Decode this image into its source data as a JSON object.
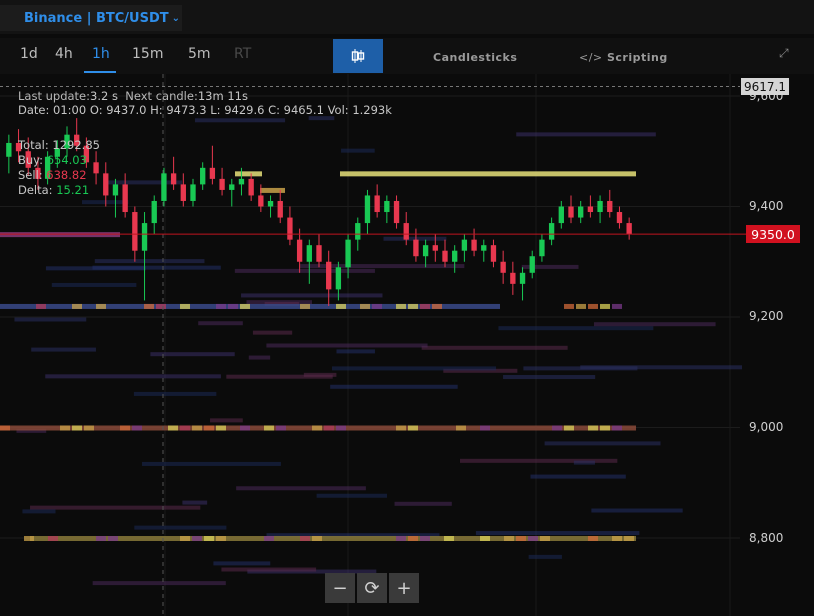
{
  "header": {
    "symbol": "Binance | BTC/USDT",
    "chevron_icon": "chevron-down-icon"
  },
  "timeframes": [
    {
      "label": "1d",
      "state": "normal"
    },
    {
      "label": "4h",
      "state": "normal"
    },
    {
      "label": "1h",
      "state": "active"
    },
    {
      "label": "15m",
      "state": "normal"
    },
    {
      "label": "5m",
      "state": "normal"
    },
    {
      "label": "RT",
      "state": "disabled"
    }
  ],
  "views": {
    "candlesticks_label": "Candlesticks",
    "scripting_label": "Scripting"
  },
  "info": {
    "last_update_label": "Last update:",
    "last_update": "3.2 s",
    "next_candle_label": "Next candle:",
    "next_candle": "13m 11s",
    "date_label": "Date:",
    "date": "01:00",
    "open_label": "O:",
    "open": "9437.0",
    "high_label": "H:",
    "high": "9473.3",
    "low_label": "L:",
    "low": "9429.6",
    "close_label": "C:",
    "close": "9465.1",
    "vol_label": "Vol:",
    "vol": "1.293k",
    "total_label": "Total:",
    "total": "1292.85",
    "buy_label": "Buy:",
    "buy": "654.03",
    "sell_label": "Sell:",
    "sell": "638.82",
    "delta_label": "Delta:",
    "delta": "15.21"
  },
  "price_axis": {
    "labels": [
      "9,600",
      "9,400",
      "9,200",
      "9,000",
      "8,800"
    ],
    "current_price": "9350.0",
    "top_price": "9617.1"
  },
  "zoom_controls": {
    "zoom_out": "−",
    "reset": "⟳",
    "zoom_in": "+"
  },
  "colors": {
    "accent": "#2f8ee9",
    "bull": "#19c954",
    "bear": "#e8384f",
    "current_price": "#d1111f"
  },
  "chart_data": {
    "type": "candlestick-heatmap",
    "symbol": "BTC/USDT",
    "timeframe": "1h",
    "ylim": [
      8680,
      9620
    ],
    "yticks": [
      9600,
      9400,
      9200,
      9000,
      8800
    ],
    "current_price": 9350.0,
    "top_price": 9617.1,
    "candles": [
      [
        9490,
        9530,
        9460,
        9515
      ],
      [
        9515,
        9540,
        9480,
        9500
      ],
      [
        9500,
        9525,
        9455,
        9470
      ],
      [
        9470,
        9490,
        9430,
        9450
      ],
      [
        9450,
        9500,
        9440,
        9490
      ],
      [
        9490,
        9520,
        9470,
        9505
      ],
      [
        9505,
        9545,
        9490,
        9530
      ],
      [
        9530,
        9560,
        9500,
        9510
      ],
      [
        9510,
        9525,
        9470,
        9480
      ],
      [
        9480,
        9500,
        9440,
        9460
      ],
      [
        9460,
        9480,
        9400,
        9420
      ],
      [
        9420,
        9450,
        9380,
        9440
      ],
      [
        9440,
        9460,
        9380,
        9390
      ],
      [
        9390,
        9400,
        9300,
        9320
      ],
      [
        9320,
        9390,
        9230,
        9370
      ],
      [
        9370,
        9420,
        9350,
        9410
      ],
      [
        9410,
        9470,
        9400,
        9460
      ],
      [
        9460,
        9490,
        9430,
        9440
      ],
      [
        9440,
        9460,
        9400,
        9410
      ],
      [
        9410,
        9450,
        9400,
        9440
      ],
      [
        9440,
        9480,
        9430,
        9470
      ],
      [
        9470,
        9510,
        9440,
        9450
      ],
      [
        9450,
        9470,
        9420,
        9430
      ],
      [
        9430,
        9450,
        9400,
        9440
      ],
      [
        9440,
        9470,
        9420,
        9450
      ],
      [
        9450,
        9460,
        9410,
        9420
      ],
      [
        9420,
        9440,
        9390,
        9400
      ],
      [
        9400,
        9420,
        9380,
        9410
      ],
      [
        9410,
        9430,
        9370,
        9380
      ],
      [
        9380,
        9400,
        9330,
        9340
      ],
      [
        9340,
        9360,
        9280,
        9300
      ],
      [
        9300,
        9340,
        9260,
        9330
      ],
      [
        9330,
        9350,
        9290,
        9300
      ],
      [
        9300,
        9320,
        9220,
        9250
      ],
      [
        9250,
        9300,
        9230,
        9290
      ],
      [
        9290,
        9350,
        9270,
        9340
      ],
      [
        9340,
        9380,
        9320,
        9370
      ],
      [
        9370,
        9430,
        9350,
        9420
      ],
      [
        9420,
        9440,
        9380,
        9390
      ],
      [
        9390,
        9420,
        9370,
        9410
      ],
      [
        9410,
        9420,
        9360,
        9370
      ],
      [
        9370,
        9390,
        9330,
        9340
      ],
      [
        9340,
        9360,
        9300,
        9310
      ],
      [
        9310,
        9340,
        9290,
        9330
      ],
      [
        9330,
        9350,
        9300,
        9320
      ],
      [
        9320,
        9340,
        9290,
        9300
      ],
      [
        9300,
        9330,
        9280,
        9320
      ],
      [
        9320,
        9350,
        9300,
        9340
      ],
      [
        9340,
        9360,
        9310,
        9320
      ],
      [
        9320,
        9340,
        9300,
        9330
      ],
      [
        9330,
        9340,
        9290,
        9300
      ],
      [
        9300,
        9320,
        9260,
        9280
      ],
      [
        9280,
        9300,
        9240,
        9260
      ],
      [
        9260,
        9290,
        9230,
        9280
      ],
      [
        9280,
        9320,
        9270,
        9310
      ],
      [
        9310,
        9350,
        9300,
        9340
      ],
      [
        9340,
        9380,
        9330,
        9370
      ],
      [
        9370,
        9410,
        9360,
        9400
      ],
      [
        9400,
        9420,
        9370,
        9380
      ],
      [
        9380,
        9410,
        9370,
        9400
      ],
      [
        9400,
        9420,
        9380,
        9390
      ],
      [
        9390,
        9420,
        9370,
        9410
      ],
      [
        9410,
        9430,
        9380,
        9390
      ],
      [
        9390,
        9400,
        9360,
        9370
      ],
      [
        9370,
        9380,
        9340,
        9350
      ]
    ],
    "heatmap_bands": [
      {
        "price": 9460,
        "x": [
          340,
          636
        ],
        "color": "#e8e27a"
      },
      {
        "price": 9460,
        "x": [
          235,
          262
        ],
        "color": "#e8e27a"
      },
      {
        "price": 9430,
        "x": [
          260,
          285
        ],
        "color": "#c9a24a"
      },
      {
        "price": 9350,
        "x": [
          0,
          120
        ],
        "color": "#8a3a7a"
      },
      {
        "price": 9220,
        "x": [
          0,
          500
        ],
        "color": "#3a4a8a"
      },
      {
        "price": 9000,
        "x": [
          0,
          636
        ],
        "color": "#8a4a3a"
      },
      {
        "price": 8800,
        "x": [
          30,
          636
        ],
        "color": "#8a7a3a"
      }
    ]
  }
}
